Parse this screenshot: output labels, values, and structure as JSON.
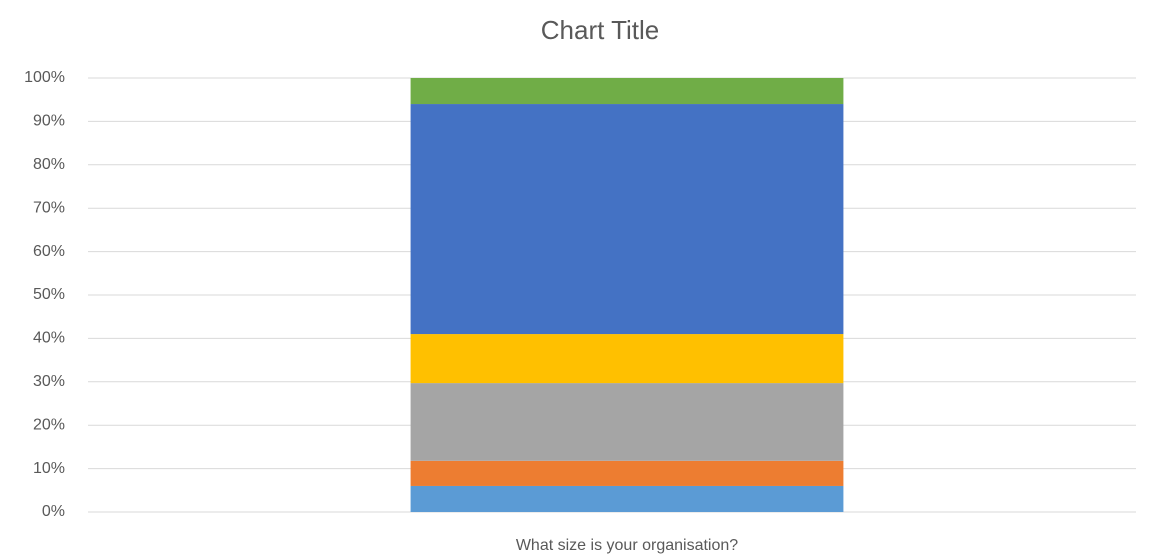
{
  "chart_data": {
    "type": "stacked_bar",
    "title": "Chart Title",
    "categories": [
      "What size is your organisation?"
    ],
    "series": [
      {
        "color": "#5b9bd5",
        "values": [
          6
        ]
      },
      {
        "color": "#ed7d31",
        "values": [
          5.8
        ]
      },
      {
        "color": "#a5a5a5",
        "values": [
          17.9
        ]
      },
      {
        "color": "#ffc000",
        "values": [
          11.3
        ]
      },
      {
        "color": "#4472c4",
        "values": [
          53
        ]
      },
      {
        "color": "#70ad47",
        "values": [
          6
        ]
      }
    ],
    "ylim": [
      0,
      100
    ],
    "yticks": [
      {
        "value": 0,
        "label": "0%"
      },
      {
        "value": 10,
        "label": "10%"
      },
      {
        "value": 20,
        "label": "20%"
      },
      {
        "value": 30,
        "label": "30%"
      },
      {
        "value": 40,
        "label": "40%"
      },
      {
        "value": 50,
        "label": "50%"
      },
      {
        "value": 60,
        "label": "60%"
      },
      {
        "value": 70,
        "label": "70%"
      },
      {
        "value": 80,
        "label": "80%"
      },
      {
        "value": 90,
        "label": "90%"
      },
      {
        "value": 100,
        "label": "100%"
      }
    ],
    "grid": true
  }
}
